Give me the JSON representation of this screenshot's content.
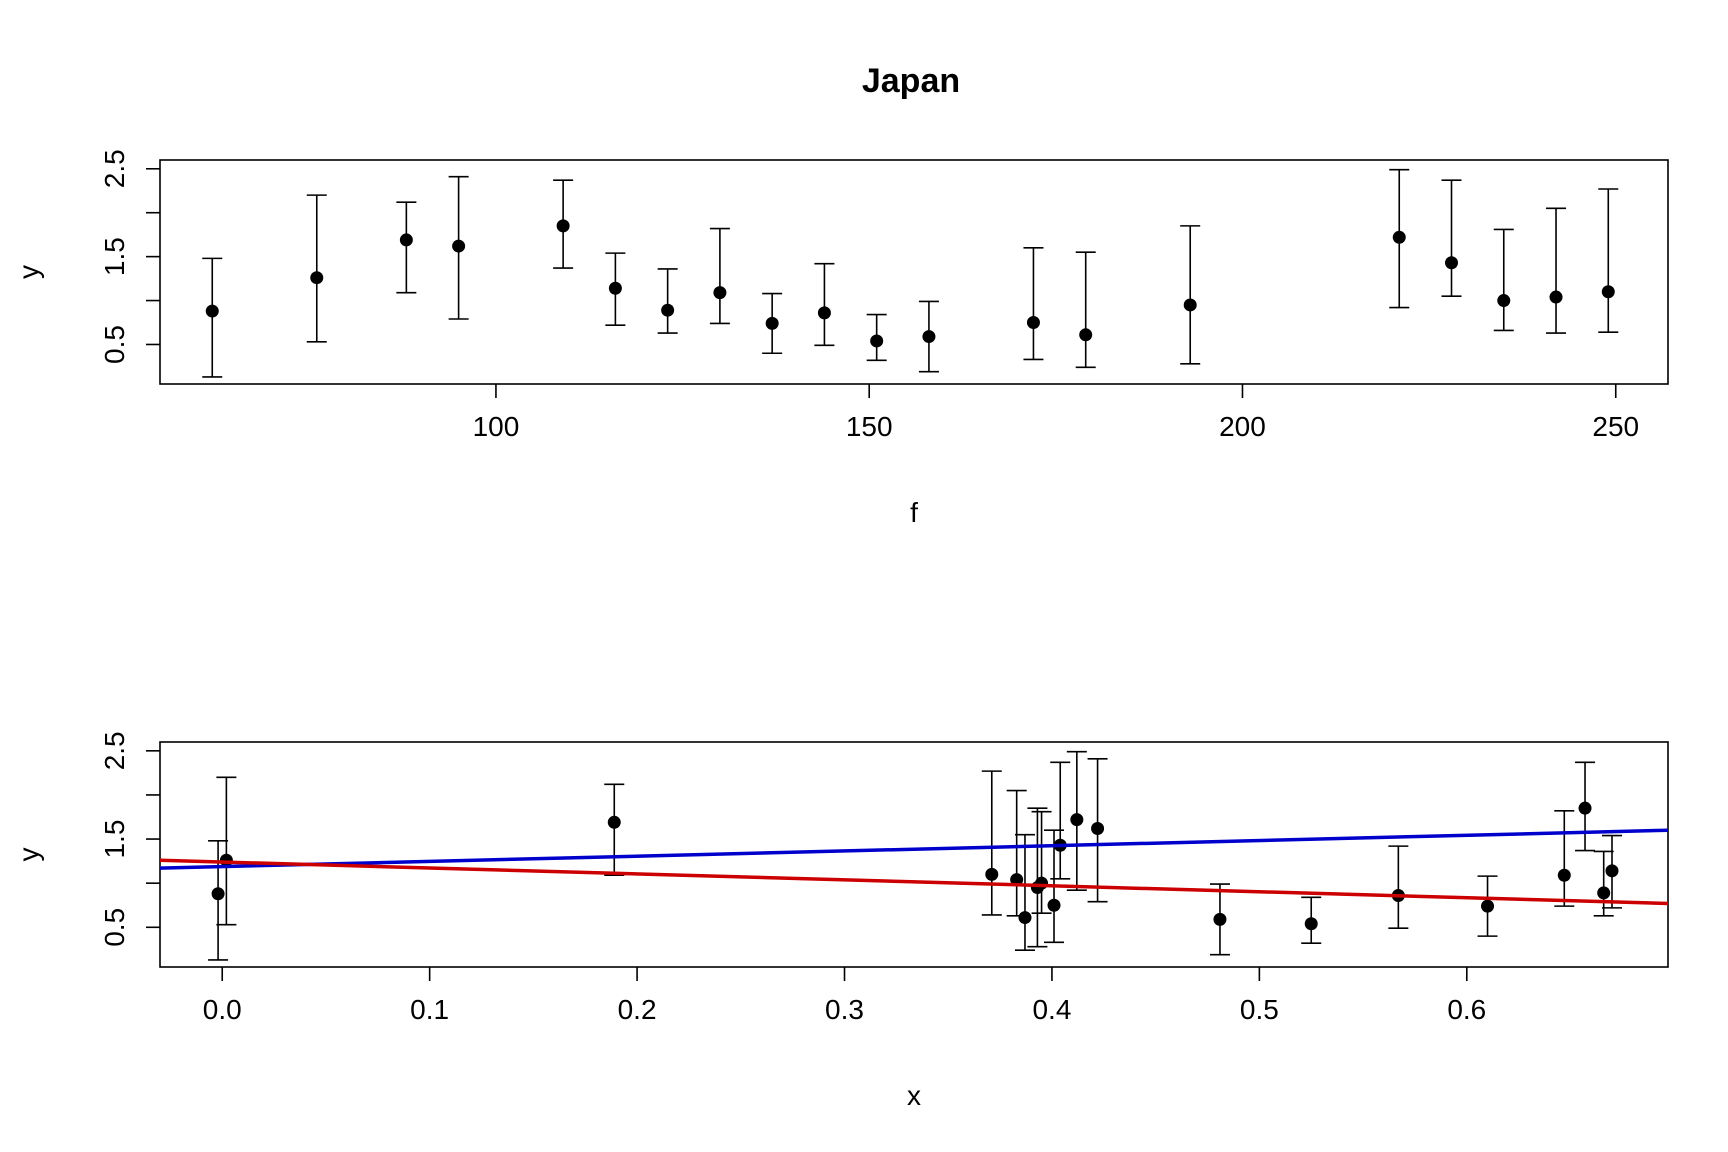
{
  "chart_data": [
    {
      "type": "scatter",
      "title": "Japan",
      "xlabel": "f",
      "ylabel": "y",
      "xlim": [
        55,
        257
      ],
      "ylim": [
        0.05,
        2.6
      ],
      "xticks": [
        100,
        150,
        200,
        250
      ],
      "xtick_labels": [
        "100",
        "150",
        "200",
        "250"
      ],
      "yticks": [
        0.5,
        1.0,
        1.5,
        2.0,
        2.5
      ],
      "ytick_labels": [
        "0.5",
        "",
        "1.5",
        "",
        "2.5"
      ],
      "grid": false,
      "points": [
        {
          "x": 62,
          "y": 0.88,
          "lo": 0.13,
          "hi": 1.48
        },
        {
          "x": 76,
          "y": 1.26,
          "lo": 0.53,
          "hi": 2.2
        },
        {
          "x": 88,
          "y": 1.69,
          "lo": 1.09,
          "hi": 2.12
        },
        {
          "x": 95,
          "y": 1.62,
          "lo": 0.79,
          "hi": 2.41
        },
        {
          "x": 109,
          "y": 1.85,
          "lo": 1.37,
          "hi": 2.37
        },
        {
          "x": 116,
          "y": 1.14,
          "lo": 0.72,
          "hi": 1.54
        },
        {
          "x": 123,
          "y": 0.89,
          "lo": 0.63,
          "hi": 1.36
        },
        {
          "x": 130,
          "y": 1.09,
          "lo": 0.74,
          "hi": 1.82
        },
        {
          "x": 137,
          "y": 0.74,
          "lo": 0.4,
          "hi": 1.08
        },
        {
          "x": 144,
          "y": 0.86,
          "lo": 0.49,
          "hi": 1.42
        },
        {
          "x": 151,
          "y": 0.54,
          "lo": 0.32,
          "hi": 0.84
        },
        {
          "x": 158,
          "y": 0.59,
          "lo": 0.19,
          "hi": 0.99
        },
        {
          "x": 172,
          "y": 0.75,
          "lo": 0.33,
          "hi": 1.6
        },
        {
          "x": 179,
          "y": 0.61,
          "lo": 0.24,
          "hi": 1.55
        },
        {
          "x": 193,
          "y": 0.95,
          "lo": 0.28,
          "hi": 1.85
        },
        {
          "x": 221,
          "y": 1.72,
          "lo": 0.92,
          "hi": 2.49
        },
        {
          "x": 228,
          "y": 1.43,
          "lo": 1.05,
          "hi": 2.37
        },
        {
          "x": 235,
          "y": 1.0,
          "lo": 0.66,
          "hi": 1.81
        },
        {
          "x": 242,
          "y": 1.04,
          "lo": 0.63,
          "hi": 2.05
        },
        {
          "x": 249,
          "y": 1.1,
          "lo": 0.64,
          "hi": 2.27
        }
      ]
    },
    {
      "type": "scatter",
      "title": "",
      "xlabel": "x",
      "ylabel": "y",
      "xlim": [
        -0.03,
        0.697
      ],
      "ylim": [
        0.05,
        2.6
      ],
      "xticks": [
        0.0,
        0.1,
        0.2,
        0.3,
        0.4,
        0.5,
        0.6
      ],
      "xtick_labels": [
        "0.0",
        "0.1",
        "0.2",
        "0.3",
        "0.4",
        "0.5",
        "0.6"
      ],
      "yticks": [
        0.5,
        1.0,
        1.5,
        2.0,
        2.5
      ],
      "ytick_labels": [
        "0.5",
        "",
        "1.5",
        "",
        "2.5"
      ],
      "grid": false,
      "points": [
        {
          "x": -0.002,
          "y": 0.88,
          "lo": 0.13,
          "hi": 1.48
        },
        {
          "x": 0.002,
          "y": 1.26,
          "lo": 0.53,
          "hi": 2.2
        },
        {
          "x": 0.189,
          "y": 1.69,
          "lo": 1.09,
          "hi": 2.12
        },
        {
          "x": 0.371,
          "y": 1.1,
          "lo": 0.64,
          "hi": 2.27
        },
        {
          "x": 0.383,
          "y": 1.04,
          "lo": 0.63,
          "hi": 2.05
        },
        {
          "x": 0.387,
          "y": 0.61,
          "lo": 0.24,
          "hi": 1.55
        },
        {
          "x": 0.393,
          "y": 0.95,
          "lo": 0.28,
          "hi": 1.85
        },
        {
          "x": 0.395,
          "y": 1.0,
          "lo": 0.66,
          "hi": 1.81
        },
        {
          "x": 0.401,
          "y": 0.75,
          "lo": 0.33,
          "hi": 1.6
        },
        {
          "x": 0.404,
          "y": 1.43,
          "lo": 1.05,
          "hi": 2.37
        },
        {
          "x": 0.412,
          "y": 1.72,
          "lo": 0.92,
          "hi": 2.49
        },
        {
          "x": 0.422,
          "y": 1.62,
          "lo": 0.79,
          "hi": 2.41
        },
        {
          "x": 0.481,
          "y": 0.59,
          "lo": 0.19,
          "hi": 0.99
        },
        {
          "x": 0.525,
          "y": 0.54,
          "lo": 0.32,
          "hi": 0.84
        },
        {
          "x": 0.567,
          "y": 0.86,
          "lo": 0.49,
          "hi": 1.42
        },
        {
          "x": 0.61,
          "y": 0.74,
          "lo": 0.4,
          "hi": 1.08
        },
        {
          "x": 0.647,
          "y": 1.09,
          "lo": 0.74,
          "hi": 1.82
        },
        {
          "x": 0.657,
          "y": 1.85,
          "lo": 1.37,
          "hi": 2.37
        },
        {
          "x": 0.666,
          "y": 0.89,
          "lo": 0.63,
          "hi": 1.36
        },
        {
          "x": 0.67,
          "y": 1.14,
          "lo": 0.72,
          "hi": 1.54
        }
      ],
      "lines": [
        {
          "color": "#0000cc",
          "x": [
            -0.03,
            0.697
          ],
          "y": [
            1.17,
            1.6
          ]
        },
        {
          "color": "#cc0000",
          "x": [
            -0.03,
            0.697
          ],
          "y": [
            1.26,
            0.77
          ]
        }
      ]
    }
  ]
}
